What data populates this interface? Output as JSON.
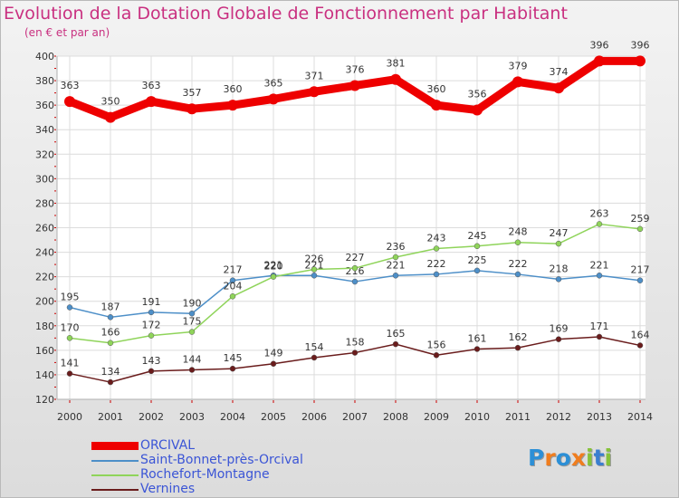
{
  "title": "Evolution de la Dotation Globale de Fonctionnement par Habitant",
  "subtitle": "(en € et par an)",
  "brand": "Proxiti",
  "chart_data": {
    "type": "line",
    "title": "Evolution de la Dotation Globale de Fonctionnement par Habitant",
    "subtitle": "(en € et par an)",
    "x": [
      "2000",
      "2001",
      "2002",
      "2003",
      "2004",
      "2005",
      "2006",
      "2007",
      "2008",
      "2009",
      "2010",
      "2011",
      "2012",
      "2013",
      "2014"
    ],
    "ylim": [
      120,
      400
    ],
    "yticks": [
      120,
      140,
      160,
      180,
      200,
      220,
      240,
      260,
      280,
      300,
      320,
      340,
      360,
      380,
      400
    ],
    "grid": true,
    "legend_position": "bottom-left",
    "series": [
      {
        "name": "ORCIVAL",
        "color": "#ee0000",
        "values": [
          363,
          350,
          363,
          357,
          360,
          365,
          371,
          376,
          381,
          360,
          356,
          379,
          374,
          396,
          396
        ]
      },
      {
        "name": "Saint-Bonnet-près-Orcival",
        "color": "#4d8fc8",
        "values": [
          195,
          187,
          191,
          190,
          217,
          221,
          221,
          216,
          221,
          222,
          225,
          222,
          218,
          221,
          217
        ]
      },
      {
        "name": "Rochefort-Montagne",
        "color": "#8fd45a",
        "values": [
          170,
          166,
          172,
          175,
          204,
          220,
          226,
          227,
          236,
          243,
          245,
          248,
          247,
          263,
          259
        ]
      },
      {
        "name": "Vernines",
        "color": "#6a1c1c",
        "values": [
          141,
          134,
          143,
          144,
          145,
          149,
          154,
          158,
          165,
          156,
          161,
          162,
          169,
          171,
          164
        ]
      }
    ]
  }
}
